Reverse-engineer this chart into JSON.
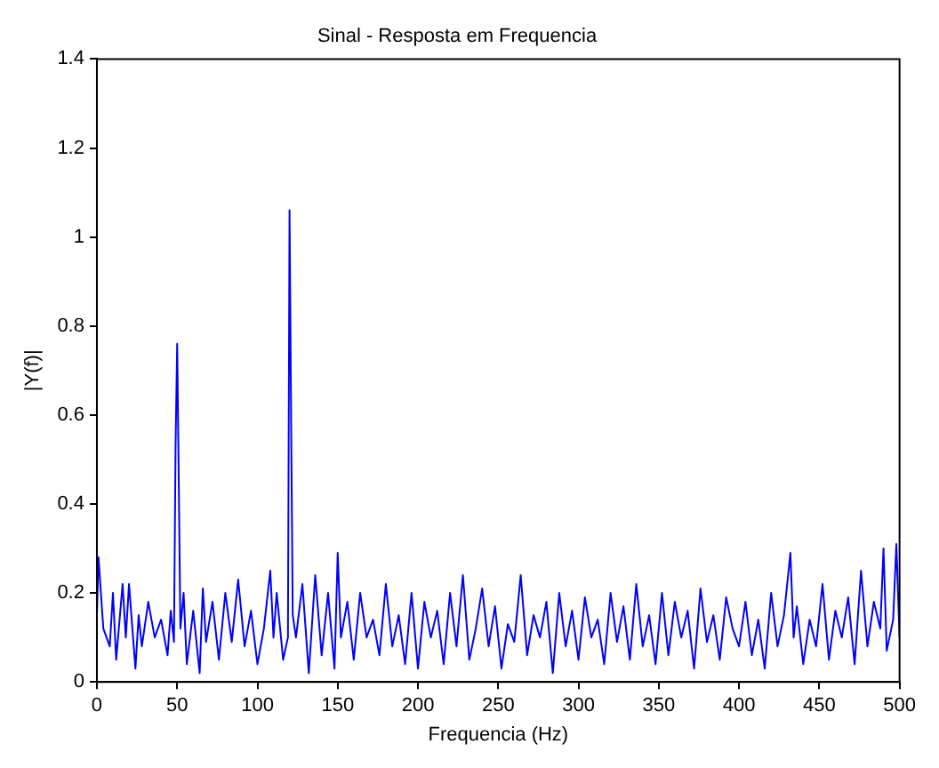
{
  "chart_data": {
    "type": "line",
    "title": "Sinal - Resposta em Frequencia",
    "xlabel": "Frequencia (Hz)",
    "ylabel": "|Y(f)|",
    "x": [
      0,
      1,
      4,
      8,
      10,
      12,
      16,
      18,
      20,
      24,
      26,
      28,
      32,
      36,
      40,
      44,
      46,
      48,
      49,
      50,
      51,
      52,
      54,
      56,
      60,
      64,
      66,
      68,
      72,
      76,
      80,
      84,
      88,
      92,
      96,
      100,
      104,
      108,
      110,
      112,
      116,
      119,
      120,
      121,
      122,
      124,
      128,
      132,
      136,
      140,
      144,
      148,
      150,
      152,
      156,
      160,
      164,
      168,
      172,
      176,
      180,
      184,
      188,
      192,
      196,
      200,
      204,
      208,
      212,
      216,
      220,
      224,
      228,
      232,
      236,
      240,
      244,
      248,
      252,
      256,
      260,
      264,
      268,
      272,
      276,
      280,
      284,
      288,
      292,
      296,
      300,
      304,
      308,
      312,
      316,
      320,
      324,
      328,
      332,
      336,
      340,
      344,
      348,
      352,
      356,
      360,
      364,
      368,
      372,
      376,
      380,
      384,
      388,
      392,
      396,
      400,
      404,
      408,
      412,
      416,
      420,
      424,
      428,
      432,
      434,
      436,
      440,
      444,
      448,
      452,
      456,
      460,
      464,
      468,
      472,
      476,
      480,
      484,
      488,
      490,
      492,
      496,
      498,
      500
    ],
    "series": [
      {
        "color": "#0000ff",
        "values": [
          0.15,
          0.28,
          0.12,
          0.08,
          0.2,
          0.05,
          0.22,
          0.1,
          0.22,
          0.03,
          0.15,
          0.08,
          0.18,
          0.1,
          0.14,
          0.06,
          0.16,
          0.09,
          0.53,
          0.76,
          0.45,
          0.12,
          0.2,
          0.04,
          0.16,
          0.02,
          0.21,
          0.09,
          0.18,
          0.05,
          0.2,
          0.09,
          0.23,
          0.08,
          0.16,
          0.04,
          0.12,
          0.25,
          0.1,
          0.2,
          0.05,
          0.1,
          1.06,
          0.58,
          0.15,
          0.1,
          0.22,
          0.02,
          0.24,
          0.06,
          0.2,
          0.03,
          0.29,
          0.1,
          0.18,
          0.05,
          0.2,
          0.1,
          0.14,
          0.06,
          0.22,
          0.08,
          0.15,
          0.04,
          0.2,
          0.03,
          0.18,
          0.1,
          0.16,
          0.04,
          0.2,
          0.08,
          0.24,
          0.05,
          0.12,
          0.21,
          0.08,
          0.17,
          0.03,
          0.13,
          0.09,
          0.24,
          0.06,
          0.15,
          0.1,
          0.18,
          0.02,
          0.2,
          0.08,
          0.16,
          0.05,
          0.19,
          0.1,
          0.14,
          0.04,
          0.2,
          0.09,
          0.17,
          0.05,
          0.22,
          0.08,
          0.15,
          0.04,
          0.2,
          0.06,
          0.18,
          0.1,
          0.16,
          0.03,
          0.21,
          0.09,
          0.15,
          0.05,
          0.19,
          0.12,
          0.08,
          0.18,
          0.06,
          0.14,
          0.03,
          0.2,
          0.08,
          0.15,
          0.29,
          0.1,
          0.17,
          0.04,
          0.14,
          0.08,
          0.22,
          0.05,
          0.16,
          0.1,
          0.19,
          0.04,
          0.25,
          0.08,
          0.18,
          0.12,
          0.3,
          0.07,
          0.14,
          0.31,
          0.1
        ]
      }
    ],
    "xlim": [
      0,
      500
    ],
    "xticks": [
      0,
      50,
      100,
      150,
      200,
      250,
      300,
      350,
      400,
      450,
      500
    ],
    "ylim": [
      0,
      1.4
    ],
    "yticks": [
      0,
      0.2,
      0.4,
      0.6,
      0.8,
      1,
      1.2,
      1.4
    ],
    "grid": false,
    "legend": false,
    "marker": "none",
    "line_style": "solid"
  }
}
